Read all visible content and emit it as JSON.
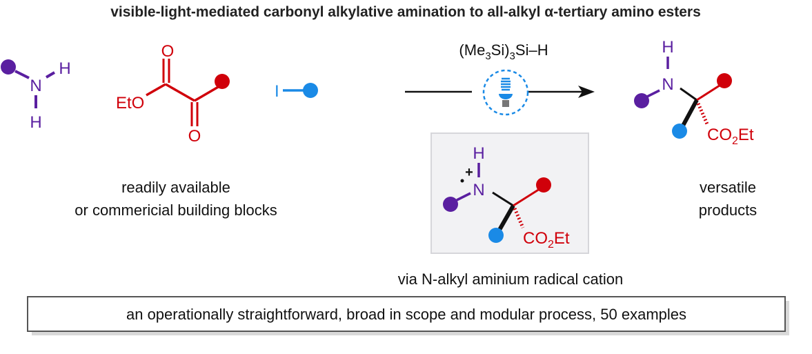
{
  "title": "visible-light-mediated carbonyl alkylative amination to all-alkyl α-tertiary amino esters",
  "reagents": {
    "amine": {
      "n": "N",
      "h1": "H",
      "h2": "H"
    },
    "ketoester": {
      "eto": "EtO",
      "o1": "O",
      "o2": "O"
    },
    "iodide": {
      "i": "I"
    }
  },
  "conditions": {
    "reagent_pre": "(Me",
    "sub1": "3",
    "mid": "Si)",
    "sub2": "3",
    "post": "Si–H",
    "light_icon": "light-bulb-icon"
  },
  "product": {
    "h": "H",
    "n": "N",
    "ester_pre": "CO",
    "ester_sub": "2",
    "ester_post": "Et"
  },
  "intermediate": {
    "h": "H",
    "n": "N",
    "charge": "+",
    "ester_pre": "CO",
    "ester_sub": "2",
    "ester_post": "Et",
    "caption": "via N-alkyl aminium radical cation"
  },
  "labels": {
    "starting_line1": "readily available",
    "starting_line2": "or commericial building blocks",
    "product_line1": "versatile",
    "product_line2": "products"
  },
  "summary": "an operationally straightforward, broad in scope and modular process, 50 examples",
  "colors": {
    "amine": "#5a1fa0",
    "carbonyl": "#d0000a",
    "alkyl": "#1a8ae6",
    "bond": "#111111"
  }
}
